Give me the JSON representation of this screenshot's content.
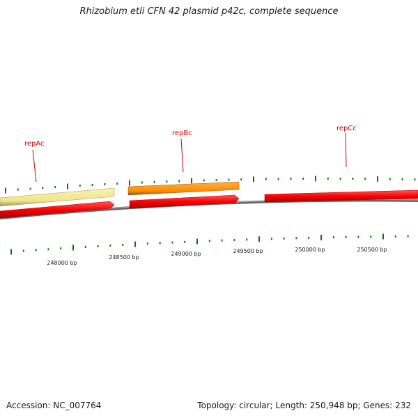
{
  "title": "Rhizobium etli CFN 42 plasmid p42c, complete sequence",
  "footer": {
    "accession": "Accession: NC_007764",
    "summary": "Topology: circular; Length: 250,948 bp; Genes: 232"
  },
  "colors": {
    "backbone": "#808080",
    "forward_gene": "#ff0000",
    "repA": "#f0e68c",
    "repB": "#ff8c00",
    "tick": "#008000",
    "gene_label": "#cc0000"
  },
  "gene_labels": [
    {
      "name": "repAc"
    },
    {
      "name": "repBc"
    },
    {
      "name": "repCc"
    }
  ],
  "scale_labels": [
    "248000 bp",
    "248500 bp",
    "249000 bp",
    "249500 bp",
    "250000 bp",
    "250500 bp"
  ]
}
